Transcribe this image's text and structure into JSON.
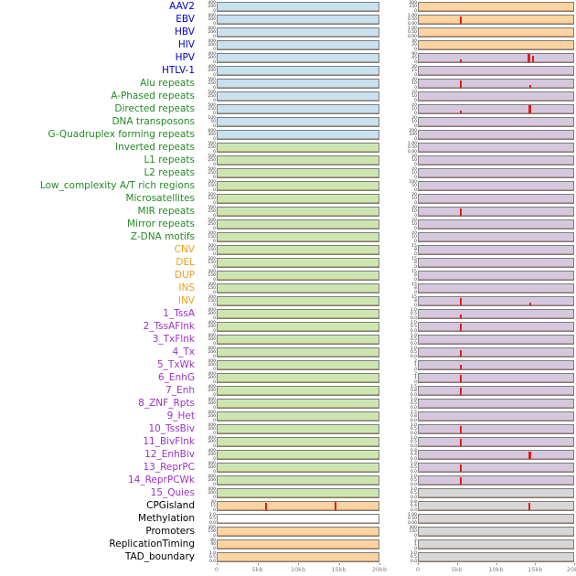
{
  "colors": {
    "label": {
      "virus": "#0000cc",
      "repeat": "#228b22",
      "sv": "#e8a020",
      "chromhmm": "#9932cc",
      "other": "#000000"
    },
    "fill": {
      "blue": "#c9e0ee",
      "green": "#cde6b0",
      "orange": "#fcd3a1",
      "purple": "#d5c8de",
      "gray": "#d7d7d7",
      "white": "#ffffff"
    },
    "spike": "#e41a1c",
    "axis_text": "#808080",
    "panel_border": "#7d7d7d"
  },
  "chart_data": {
    "type": "line",
    "title": "",
    "columns": 2,
    "x_ticks": [
      "0",
      "5kb",
      "10kb",
      "15kb",
      "20kb"
    ],
    "x_range_kb": [
      0,
      20
    ],
    "legend": "none",
    "rows": [
      {
        "label": "AAV2",
        "cat": "virus",
        "left": {
          "fill": "blue",
          "ticks": [
            "400",
            "200",
            "0"
          ]
        },
        "right": {
          "fill": "orange",
          "ticks": [
            "300",
            "150",
            "0"
          ]
        }
      },
      {
        "label": "EBV",
        "cat": "virus",
        "left": {
          "fill": "blue",
          "ticks": [
            "400",
            "200",
            "0"
          ]
        },
        "right": {
          "fill": "orange",
          "ticks": [
            "1.00",
            "0.50",
            "0.00"
          ],
          "spikes": [
            {
              "kb": 5.4,
              "h": 0.85
            }
          ]
        }
      },
      {
        "label": "HBV",
        "cat": "virus",
        "left": {
          "fill": "blue",
          "ticks": [
            "400",
            "200",
            "0"
          ]
        },
        "right": {
          "fill": "orange",
          "ticks": [
            "1.00",
            "0.50",
            "0.00"
          ]
        }
      },
      {
        "label": "HIV",
        "cat": "virus",
        "left": {
          "fill": "blue",
          "ticks": [
            "400",
            "200",
            "0"
          ]
        },
        "right": {
          "fill": "orange",
          "ticks": [
            "40",
            "20",
            "0"
          ]
        }
      },
      {
        "label": "HPV",
        "cat": "virus",
        "left": {
          "fill": "blue",
          "ticks": [
            "400",
            "200",
            "0"
          ]
        },
        "right": {
          "fill": "purple",
          "ticks": [
            "90",
            "45",
            "0"
          ],
          "spikes": [
            {
              "kb": 5.5,
              "h": 0.3
            },
            {
              "kb": 14.2,
              "h": 0.95,
              "w": 3
            },
            {
              "kb": 14.8,
              "h": 0.7
            }
          ]
        }
      },
      {
        "label": "HTLV-1",
        "cat": "virus",
        "left": {
          "fill": "blue",
          "ticks": [
            "400",
            "200",
            "0"
          ]
        },
        "right": {
          "fill": "purple",
          "ticks": [
            "30",
            "15",
            "0"
          ]
        }
      },
      {
        "label": "Alu repeats",
        "cat": "repeat",
        "left": {
          "fill": "blue",
          "ticks": [
            "500",
            "250",
            "0"
          ]
        },
        "right": {
          "fill": "purple",
          "ticks": [
            "20",
            "10",
            "0"
          ],
          "spikes": [
            {
              "kb": 5.4,
              "h": 0.8
            },
            {
              "kb": 14.4,
              "h": 0.25
            }
          ]
        }
      },
      {
        "label": "A-Phased repeats",
        "cat": "repeat",
        "left": {
          "fill": "blue",
          "ticks": [
            "500",
            "250",
            "0"
          ]
        },
        "right": {
          "fill": "purple",
          "ticks": [
            "20",
            "10",
            "0"
          ]
        }
      },
      {
        "label": "Directed repeats",
        "cat": "repeat",
        "left": {
          "fill": "blue",
          "ticks": [
            "500",
            "250",
            "0"
          ]
        },
        "right": {
          "fill": "purple",
          "ticks": [
            "20",
            "10",
            "0"
          ],
          "spikes": [
            {
              "kb": 5.4,
              "h": 0.3
            },
            {
              "kb": 14.3,
              "h": 0.95,
              "w": 3
            }
          ]
        }
      },
      {
        "label": "DNA transposons",
        "cat": "repeat",
        "left": {
          "fill": "blue",
          "ticks": [
            "100",
            "50",
            "0"
          ]
        },
        "right": {
          "fill": "purple",
          "ticks": [
            "20",
            "10",
            "0"
          ]
        }
      },
      {
        "label": "G-Quadruplex forming repeats",
        "cat": "repeat",
        "left": {
          "fill": "blue",
          "ticks": [
            "600",
            "300",
            "0"
          ]
        },
        "right": {
          "fill": "purple",
          "ticks": [
            "200",
            "100",
            "0"
          ]
        }
      },
      {
        "label": "Inverted repeats",
        "cat": "repeat",
        "left": {
          "fill": "green",
          "ticks": [
            "500",
            "250",
            "0"
          ]
        },
        "right": {
          "fill": "purple",
          "ticks": [
            "1.00",
            "0.50",
            "0.00"
          ]
        }
      },
      {
        "label": "L1 repeats",
        "cat": "repeat",
        "left": {
          "fill": "green",
          "ticks": [
            "500",
            "250",
            "0"
          ]
        },
        "right": {
          "fill": "purple",
          "ticks": [
            "20",
            "10",
            "0"
          ]
        }
      },
      {
        "label": "L2 repeats",
        "cat": "repeat",
        "left": {
          "fill": "green",
          "ticks": [
            "500",
            "250",
            "0"
          ]
        },
        "right": {
          "fill": "purple",
          "ticks": [
            "20",
            "10",
            "0"
          ]
        }
      },
      {
        "label": "Low_complexity A/T rich regions",
        "cat": "repeat",
        "left": {
          "fill": "green",
          "ticks": [
            "300",
            "150",
            "0"
          ]
        },
        "right": {
          "fill": "purple",
          "ticks": [
            "100",
            "50",
            "0"
          ]
        }
      },
      {
        "label": "Microsatellites",
        "cat": "repeat",
        "left": {
          "fill": "green",
          "ticks": [
            "300",
            "150",
            "0"
          ]
        },
        "right": {
          "fill": "purple",
          "ticks": [
            "20",
            "10",
            "0"
          ]
        }
      },
      {
        "label": "MIR repeats",
        "cat": "repeat",
        "left": {
          "fill": "green",
          "ticks": [
            "500",
            "250",
            "0"
          ]
        },
        "right": {
          "fill": "purple",
          "ticks": [
            "20",
            "10",
            "0"
          ],
          "spikes": [
            {
              "kb": 5.4,
              "h": 0.8
            }
          ]
        }
      },
      {
        "label": "Mirror repeats",
        "cat": "repeat",
        "left": {
          "fill": "green",
          "ticks": [
            "500",
            "250",
            "0"
          ]
        },
        "right": {
          "fill": "purple",
          "ticks": [
            "20",
            "10",
            "0"
          ]
        }
      },
      {
        "label": "Z-DNA motifs",
        "cat": "repeat",
        "left": {
          "fill": "green",
          "ticks": [
            "300",
            "150",
            "0"
          ]
        },
        "right": {
          "fill": "purple",
          "ticks": [
            "20",
            "10",
            "0"
          ]
        }
      },
      {
        "label": "CNV",
        "cat": "sv",
        "left": {
          "fill": "green",
          "ticks": [
            "300",
            "150",
            "0"
          ]
        },
        "right": {
          "fill": "purple",
          "ticks": [
            "15",
            "8",
            "0"
          ]
        }
      },
      {
        "label": "DEL",
        "cat": "sv",
        "left": {
          "fill": "green",
          "ticks": [
            "300",
            "150",
            "0"
          ]
        },
        "right": {
          "fill": "purple",
          "ticks": [
            "15",
            "8",
            "0"
          ]
        }
      },
      {
        "label": "DUP",
        "cat": "sv",
        "left": {
          "fill": "green",
          "ticks": [
            "300",
            "150",
            "0"
          ]
        },
        "right": {
          "fill": "purple",
          "ticks": [
            "15",
            "8",
            "0"
          ]
        }
      },
      {
        "label": "INS",
        "cat": "sv",
        "left": {
          "fill": "green",
          "ticks": [
            "300",
            "150",
            "0"
          ]
        },
        "right": {
          "fill": "purple",
          "ticks": [
            "15",
            "8",
            "0"
          ]
        }
      },
      {
        "label": "INV",
        "cat": "sv",
        "left": {
          "fill": "green",
          "ticks": [
            "300",
            "150",
            "0"
          ]
        },
        "right": {
          "fill": "purple",
          "ticks": [
            "15",
            "8",
            "0"
          ],
          "spikes": [
            {
              "kb": 5.4,
              "h": 0.8
            },
            {
              "kb": 14.4,
              "h": 0.3
            }
          ]
        }
      },
      {
        "label": "1_TssA",
        "cat": "chromhmm",
        "left": {
          "fill": "green",
          "ticks": [
            "400",
            "200",
            "0"
          ]
        },
        "right": {
          "fill": "purple",
          "ticks": [
            "1.0",
            "0.5",
            "0.0"
          ],
          "spikes": [
            {
              "kb": 5.4,
              "h": 0.35
            }
          ]
        }
      },
      {
        "label": "2_TssAFlnk",
        "cat": "chromhmm",
        "left": {
          "fill": "green",
          "ticks": [
            "400",
            "200",
            "0"
          ]
        },
        "right": {
          "fill": "purple",
          "ticks": [
            "1.0",
            "0.5",
            "0.0"
          ],
          "spikes": [
            {
              "kb": 5.4,
              "h": 0.8
            }
          ]
        }
      },
      {
        "label": "3_TxFlnk",
        "cat": "chromhmm",
        "left": {
          "fill": "green",
          "ticks": [
            "400",
            "200",
            "0"
          ]
        },
        "right": {
          "fill": "purple",
          "ticks": [
            "1.0",
            "0.5",
            "0.0"
          ]
        }
      },
      {
        "label": "4_Tx",
        "cat": "chromhmm",
        "left": {
          "fill": "green",
          "ticks": [
            "400",
            "200",
            "0"
          ]
        },
        "right": {
          "fill": "purple",
          "ticks": [
            "1.0",
            "0.5",
            "0.0"
          ],
          "spikes": [
            {
              "kb": 5.4,
              "h": 0.7
            }
          ]
        }
      },
      {
        "label": "5_TxWk",
        "cat": "chromhmm",
        "left": {
          "fill": "green",
          "ticks": [
            "400",
            "200",
            "0"
          ]
        },
        "right": {
          "fill": "purple",
          "ticks": [
            "2",
            "1",
            "0"
          ],
          "spikes": [
            {
              "kb": 5.4,
              "h": 0.45
            }
          ]
        }
      },
      {
        "label": "6_EnhG",
        "cat": "chromhmm",
        "left": {
          "fill": "green",
          "ticks": [
            "400",
            "200",
            "0"
          ]
        },
        "right": {
          "fill": "purple",
          "ticks": [
            "2",
            "1",
            "0"
          ],
          "spikes": [
            {
              "kb": 5.4,
              "h": 0.8
            }
          ]
        }
      },
      {
        "label": "7_Enh",
        "cat": "chromhmm",
        "left": {
          "fill": "green",
          "ticks": [
            "400",
            "200",
            "0"
          ]
        },
        "right": {
          "fill": "purple",
          "ticks": [
            "1.5",
            "0.8",
            "0.0"
          ],
          "spikes": [
            {
              "kb": 5.4,
              "h": 0.8
            }
          ]
        }
      },
      {
        "label": "8_ZNF_Rpts",
        "cat": "chromhmm",
        "left": {
          "fill": "green",
          "ticks": [
            "400",
            "200",
            "0"
          ]
        },
        "right": {
          "fill": "purple",
          "ticks": [
            "1.0",
            "0.5",
            "0.0"
          ]
        }
      },
      {
        "label": "9_Het",
        "cat": "chromhmm",
        "left": {
          "fill": "green",
          "ticks": [
            "400",
            "200",
            "0"
          ]
        },
        "right": {
          "fill": "purple",
          "ticks": [
            "1.5",
            "0.8",
            "0.0"
          ]
        }
      },
      {
        "label": "10_TssBiv",
        "cat": "chromhmm",
        "left": {
          "fill": "green",
          "ticks": [
            "400",
            "200",
            "0"
          ]
        },
        "right": {
          "fill": "purple",
          "ticks": [
            "1.0",
            "0.5",
            "0.0"
          ],
          "spikes": [
            {
              "kb": 5.4,
              "h": 0.85
            }
          ]
        }
      },
      {
        "label": "11_BivFlnk",
        "cat": "chromhmm",
        "left": {
          "fill": "green",
          "ticks": [
            "400",
            "200",
            "0"
          ]
        },
        "right": {
          "fill": "purple",
          "ticks": [
            "1.0",
            "0.5",
            "0.0"
          ],
          "spikes": [
            {
              "kb": 5.4,
              "h": 0.8
            }
          ]
        }
      },
      {
        "label": "12_EnhBiv",
        "cat": "chromhmm",
        "left": {
          "fill": "green",
          "ticks": [
            "400",
            "200",
            "0"
          ]
        },
        "right": {
          "fill": "purple",
          "ticks": [
            "0.8",
            "0.4",
            "0.0"
          ],
          "spikes": [
            {
              "kb": 14.3,
              "h": 0.85,
              "w": 3
            }
          ]
        }
      },
      {
        "label": "13_ReprPC",
        "cat": "chromhmm",
        "left": {
          "fill": "green",
          "ticks": [
            "400",
            "200",
            "0"
          ]
        },
        "right": {
          "fill": "purple",
          "ticks": [
            "1.0",
            "0.5",
            "0.0"
          ],
          "spikes": [
            {
              "kb": 5.4,
              "h": 0.8
            }
          ]
        }
      },
      {
        "label": "14_ReprPCWk",
        "cat": "chromhmm",
        "left": {
          "fill": "green",
          "ticks": [
            "400",
            "200",
            "0"
          ]
        },
        "right": {
          "fill": "purple",
          "ticks": [
            "1.0",
            "0.5",
            "0.0"
          ],
          "spikes": [
            {
              "kb": 5.4,
              "h": 0.8
            }
          ]
        }
      },
      {
        "label": "15_Quies",
        "cat": "chromhmm",
        "left": {
          "fill": "green",
          "ticks": [
            "400",
            "200",
            "0"
          ]
        },
        "right": {
          "fill": "gray",
          "ticks": [
            "1.0",
            "0.5",
            "0.0"
          ]
        }
      },
      {
        "label": "CPGisland",
        "cat": "other",
        "left": {
          "fill": "orange",
          "ticks": [
            "30",
            "15",
            "0"
          ],
          "spikes": [
            {
              "kb": 6.0,
              "h": 0.85
            },
            {
              "kb": 14.7,
              "h": 0.9
            }
          ]
        },
        "right": {
          "fill": "gray",
          "ticks": [
            "0.8",
            "0.4",
            "0.0"
          ],
          "spikes": [
            {
              "kb": 14.3,
              "h": 0.85
            }
          ]
        }
      },
      {
        "label": "Methylation",
        "cat": "other",
        "left": {
          "fill": "white",
          "ticks": [
            "1.0",
            "0.5",
            "0.0"
          ]
        },
        "right": {
          "fill": "gray",
          "ticks": [
            "1.00",
            "0.50",
            "0.00"
          ]
        }
      },
      {
        "label": "Promoters",
        "cat": "other",
        "left": {
          "fill": "orange",
          "ticks": [
            "300",
            "150",
            "0"
          ]
        },
        "right": {
          "fill": "gray",
          "ticks": [
            "300",
            "150",
            "0"
          ]
        }
      },
      {
        "label": "ReplicationTiming",
        "cat": "other",
        "left": {
          "fill": "orange",
          "ticks": [
            "80",
            "40",
            "0"
          ]
        },
        "right": {
          "fill": "gray",
          "ticks": [
            "2",
            "1",
            "0"
          ]
        }
      },
      {
        "label": "TAD_boundary",
        "cat": "other",
        "left": {
          "fill": "orange",
          "ticks": [
            "1.0",
            "0.5",
            "0.0"
          ]
        },
        "right": {
          "fill": "gray",
          "ticks": [
            "1.0",
            "0.5",
            "0.0"
          ]
        }
      }
    ]
  }
}
